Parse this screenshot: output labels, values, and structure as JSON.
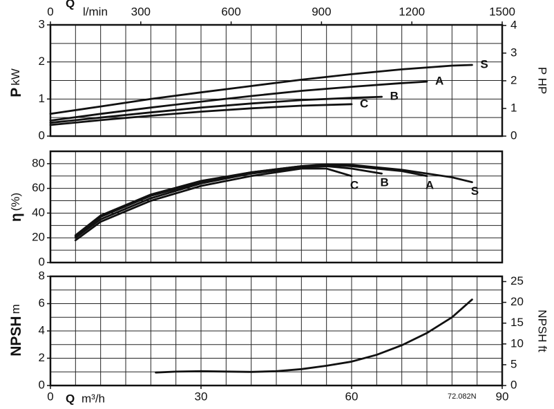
{
  "chart_data": [
    {
      "type": "line",
      "ylabel": "P",
      "yunit": "kW",
      "y2label": "P HP",
      "xlim": [
        0,
        90
      ],
      "xgrid": [
        0,
        5,
        10,
        15,
        20,
        25,
        30,
        35,
        40,
        45,
        50,
        55,
        60,
        65,
        70,
        75,
        80,
        85,
        90
      ],
      "x2label": "Q",
      "x2unit": "l/min",
      "x2lim": [
        0,
        1500
      ],
      "x2ticks": [
        0,
        300,
        600,
        900,
        1200,
        1500
      ],
      "ylim": [
        0,
        3
      ],
      "yticks": [
        0,
        1,
        2,
        3
      ],
      "ygrid": [
        0,
        0.5,
        1,
        1.5,
        2,
        2.5,
        3
      ],
      "y2lim": [
        0,
        4.02
      ],
      "y2ticks": [
        0,
        1,
        2,
        3,
        4
      ],
      "color": "#111111",
      "series": [
        {
          "name": "S",
          "x": [
            0,
            10,
            20,
            30,
            40,
            50,
            60,
            70,
            80,
            84
          ],
          "values": [
            0.6,
            0.8,
            1.0,
            1.18,
            1.35,
            1.52,
            1.67,
            1.8,
            1.9,
            1.92
          ]
        },
        {
          "name": "A",
          "x": [
            0,
            10,
            20,
            30,
            40,
            50,
            60,
            70,
            75
          ],
          "values": [
            0.42,
            0.6,
            0.77,
            0.93,
            1.08,
            1.22,
            1.33,
            1.43,
            1.47
          ]
        },
        {
          "name": "B",
          "x": [
            0,
            10,
            20,
            30,
            40,
            50,
            60,
            66
          ],
          "values": [
            0.36,
            0.5,
            0.64,
            0.77,
            0.88,
            0.97,
            1.03,
            1.06
          ]
        },
        {
          "name": "C",
          "x": [
            0,
            10,
            20,
            30,
            40,
            50,
            60
          ],
          "values": [
            0.3,
            0.43,
            0.55,
            0.66,
            0.75,
            0.82,
            0.86
          ]
        }
      ]
    },
    {
      "type": "line",
      "ylabel": "η",
      "yunit": "(%)",
      "xlim": [
        0,
        90
      ],
      "xgrid": [
        0,
        5,
        10,
        15,
        20,
        25,
        30,
        35,
        40,
        45,
        50,
        55,
        60,
        65,
        70,
        75,
        80,
        85,
        90
      ],
      "ylim": [
        0,
        90
      ],
      "yticks": [
        0,
        20,
        40,
        60,
        80
      ],
      "ygrid": [
        0,
        10,
        20,
        30,
        40,
        50,
        60,
        70,
        80,
        90
      ],
      "color": "#111111",
      "series": [
        {
          "name": "S",
          "x": [
            5,
            10,
            20,
            30,
            40,
            50,
            55,
            60,
            70,
            80,
            84
          ],
          "values": [
            22,
            38,
            55,
            66,
            73,
            78,
            79.5,
            79,
            75,
            69,
            65
          ]
        },
        {
          "name": "A",
          "x": [
            5,
            10,
            20,
            30,
            40,
            50,
            55,
            60,
            70,
            75
          ],
          "values": [
            21,
            37,
            54,
            65,
            73,
            78,
            79,
            78,
            74,
            70
          ]
        },
        {
          "name": "B",
          "x": [
            5,
            10,
            20,
            30,
            40,
            50,
            55,
            60,
            66
          ],
          "values": [
            20,
            35,
            52,
            64,
            72,
            77,
            78,
            76,
            72
          ]
        },
        {
          "name": "C",
          "x": [
            5,
            10,
            20,
            30,
            40,
            50,
            55,
            60
          ],
          "values": [
            18,
            33,
            50,
            62,
            70,
            76,
            76,
            70
          ]
        }
      ]
    },
    {
      "type": "line",
      "ylabel": "NPSH",
      "yunit": "m",
      "y2label": "NPSH ft",
      "xlabel": "Q",
      "xunit": "m³/h",
      "annotation": "72.082N",
      "xlim": [
        0,
        90
      ],
      "xticks": [
        0,
        30,
        60,
        90
      ],
      "xgrid": [
        0,
        5,
        10,
        15,
        20,
        25,
        30,
        35,
        40,
        45,
        50,
        55,
        60,
        65,
        70,
        75,
        80,
        85,
        90
      ],
      "ylim": [
        0,
        8
      ],
      "yticks": [
        0,
        2,
        4,
        6,
        8
      ],
      "ygrid": [
        0,
        1,
        2,
        3,
        4,
        5,
        6,
        7,
        8
      ],
      "y2lim": [
        0,
        26.25
      ],
      "y2ticks": [
        0,
        5,
        10,
        15,
        20,
        25
      ],
      "color": "#111111",
      "series": [
        {
          "x": [
            21,
            25,
            30,
            40,
            45,
            50,
            55,
            60,
            65,
            70,
            75,
            80,
            84
          ],
          "values": [
            0.95,
            1.02,
            1.05,
            1.0,
            1.05,
            1.2,
            1.45,
            1.75,
            2.25,
            2.95,
            3.85,
            5.0,
            6.3
          ]
        }
      ]
    }
  ]
}
